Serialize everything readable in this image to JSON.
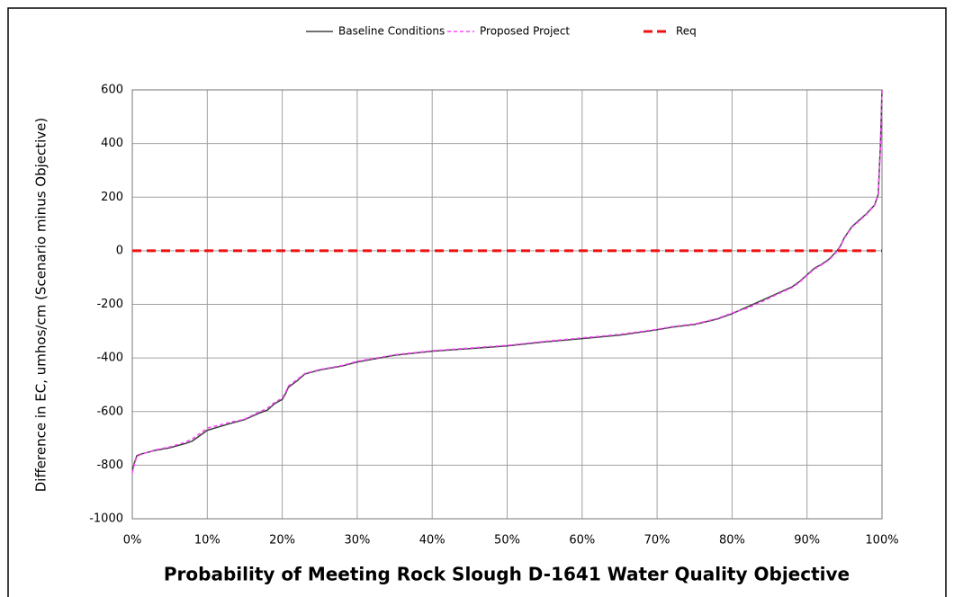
{
  "chart_data": {
    "type": "line",
    "xlabel": "Probability of Meeting Rock Slough D-1641 Water Quality Objective",
    "ylabel": "Difference in EC, umhos/cm (Scenario minus Objective)",
    "xlim": [
      0,
      100
    ],
    "xticks": [
      {
        "value": 0,
        "label": "0%"
      },
      {
        "value": 10,
        "label": "10%"
      },
      {
        "value": 20,
        "label": "20%"
      },
      {
        "value": 30,
        "label": "30%"
      },
      {
        "value": 40,
        "label": "40%"
      },
      {
        "value": 50,
        "label": "50%"
      },
      {
        "value": 60,
        "label": "60%"
      },
      {
        "value": 70,
        "label": "70%"
      },
      {
        "value": 80,
        "label": "80%"
      },
      {
        "value": 90,
        "label": "90%"
      },
      {
        "value": 100,
        "label": "100%"
      }
    ],
    "ylim": [
      -1000,
      600
    ],
    "yticks": [
      -1000,
      -800,
      -600,
      -400,
      -200,
      0,
      200,
      400,
      600
    ],
    "grid": true,
    "legend": "top",
    "series": [
      {
        "name": "Baseline Conditions",
        "color": "#404040",
        "dash": "solid",
        "x": [
          0,
          0.3,
          0.6,
          1,
          3,
          5,
          7,
          8,
          10,
          13,
          15,
          17,
          18,
          19,
          20,
          20.5,
          20.8,
          22,
          23,
          25,
          28,
          30,
          33,
          35,
          40,
          45,
          50,
          55,
          60,
          65,
          70,
          72,
          75,
          78,
          80,
          82,
          84,
          86,
          88,
          89,
          90,
          91,
          92,
          93,
          94,
          94.5,
          95,
          96,
          97,
          98,
          99,
          99.5,
          99.8,
          100
        ],
        "values": [
          -820,
          -790,
          -765,
          -760,
          -745,
          -735,
          -720,
          -710,
          -670,
          -645,
          -630,
          -605,
          -595,
          -570,
          -555,
          -530,
          -510,
          -485,
          -460,
          -445,
          -430,
          -415,
          -400,
          -390,
          -375,
          -365,
          -355,
          -340,
          -328,
          -315,
          -295,
          -285,
          -275,
          -255,
          -235,
          -210,
          -185,
          -160,
          -135,
          -115,
          -90,
          -65,
          -50,
          -30,
          0,
          20,
          50,
          90,
          115,
          140,
          170,
          210,
          400,
          600
        ]
      },
      {
        "name": "Proposed Project",
        "color": "#ff44ff",
        "dash": "dashed",
        "x": [
          0,
          0.3,
          0.6,
          1,
          3,
          5,
          7,
          8,
          10,
          13,
          15,
          17,
          18,
          19,
          20,
          20.5,
          20.8,
          22,
          23,
          25,
          28,
          30,
          33,
          35,
          40,
          45,
          50,
          55,
          60,
          65,
          70,
          72,
          75,
          78,
          80,
          82,
          84,
          86,
          88,
          89,
          90,
          91,
          92,
          93,
          94,
          94.5,
          95,
          96,
          97,
          98,
          99,
          99.5,
          99.8,
          100
        ],
        "values": [
          -830,
          -795,
          -768,
          -762,
          -743,
          -732,
          -715,
          -702,
          -662,
          -640,
          -628,
          -600,
          -588,
          -565,
          -550,
          -525,
          -505,
          -480,
          -458,
          -443,
          -428,
          -412,
          -398,
          -388,
          -373,
          -363,
          -353,
          -338,
          -325,
          -312,
          -293,
          -283,
          -273,
          -253,
          -232,
          -215,
          -190,
          -163,
          -138,
          -118,
          -92,
          -68,
          -52,
          -33,
          -3,
          18,
          47,
          88,
          112,
          138,
          168,
          205,
          390,
          600
        ]
      },
      {
        "name": "Req",
        "color": "#ee1111",
        "dash": "dashed",
        "x": [
          0,
          100
        ],
        "values": [
          0,
          0
        ]
      }
    ]
  }
}
